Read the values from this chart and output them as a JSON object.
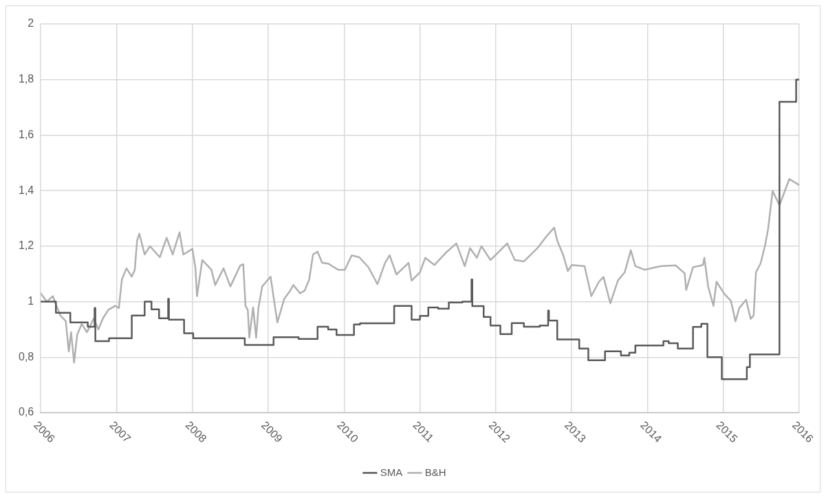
{
  "chart_data": {
    "type": "line",
    "xlim": [
      2006,
      2016
    ],
    "xticks": [
      2006,
      2007,
      2008,
      2009,
      2010,
      2011,
      2012,
      2013,
      2014,
      2015,
      2016
    ],
    "ylim": [
      0.6,
      2
    ],
    "yticks": [
      {
        "value": 0.6,
        "label": "0,6"
      },
      {
        "value": 0.8,
        "label": "0,8"
      },
      1,
      {
        "value": 1.2,
        "label": "1,2"
      },
      {
        "value": 1.4,
        "label": "1,4"
      },
      {
        "value": 1.6,
        "label": "1,6"
      },
      {
        "value": 1.8,
        "label": "1,8"
      },
      2
    ],
    "grid": true,
    "legend": "bottom",
    "series": [
      {
        "name": "SMA",
        "type": "step",
        "color": "#595959",
        "x": [
          2006,
          2006.2,
          2006.39,
          2006.62,
          2006.71,
          2006.72,
          2006.9,
          2007.2,
          2007.37,
          2007.46,
          2007.56,
          2007.68,
          2007.69,
          2007.89,
          2008.01,
          2008.69,
          2009.07,
          2009.4,
          2009.65,
          2009.79,
          2009.9,
          2010.13,
          2010.21,
          2010.66,
          2010.89,
          2011,
          2011.11,
          2011.24,
          2011.38,
          2011.56,
          2011.68,
          2011.69,
          2011.84,
          2011.93,
          2012.06,
          2012.21,
          2012.37,
          2012.58,
          2012.69,
          2012.7,
          2012.81,
          2013.1,
          2013.22,
          2013.44,
          2013.65,
          2013.76,
          2013.84,
          2014.21,
          2014.28,
          2014.4,
          2014.6,
          2014.71,
          2014.79,
          2014.98,
          2015.31,
          2015.35,
          2015.74,
          2015.96,
          2016
        ],
        "values": [
          1,
          0.96,
          0.925,
          0.91,
          0.977,
          0.858,
          0.868,
          0.95,
          1,
          0.972,
          0.94,
          1.01,
          0.935,
          0.886,
          0.868,
          0.844,
          0.872,
          0.866,
          0.91,
          0.9,
          0.88,
          0.918,
          0.922,
          0.985,
          0.935,
          0.949,
          0.979,
          0.975,
          0.997,
          1,
          1.08,
          0.984,
          0.945,
          0.914,
          0.883,
          0.923,
          0.91,
          0.914,
          0.968,
          0.932,
          0.864,
          0.831,
          0.789,
          0.821,
          0.806,
          0.816,
          0.842,
          0.858,
          0.85,
          0.831,
          0.909,
          0.92,
          0.8,
          0.721,
          0.764,
          0.81,
          1.72,
          1.8,
          1.8
        ]
      },
      {
        "name": "B&H",
        "color": "#b0b0b0",
        "x": [
          2006,
          2006.08,
          2006.16,
          2006.2,
          2006.26,
          2006.33,
          2006.37,
          2006.4,
          2006.44,
          2006.48,
          2006.54,
          2006.61,
          2006.7,
          2006.76,
          2006.82,
          2006.89,
          2006.98,
          2007.03,
          2007.07,
          2007.13,
          2007.2,
          2007.24,
          2007.27,
          2007.3,
          2007.37,
          2007.44,
          2007.57,
          2007.66,
          2007.74,
          2007.83,
          2007.88,
          2008.0,
          2008.04,
          2008.06,
          2008.13,
          2008.25,
          2008.3,
          2008.41,
          2008.5,
          2008.63,
          2008.67,
          2008.7,
          2008.73,
          2008.75,
          2008.8,
          2008.84,
          2008.87,
          2008.92,
          2009.03,
          2009.12,
          2009.21,
          2009.29,
          2009.33,
          2009.42,
          2009.48,
          2009.54,
          2009.59,
          2009.65,
          2009.71,
          2009.79,
          2009.92,
          2010.01,
          2010.1,
          2010.2,
          2010.32,
          2010.44,
          2010.54,
          2010.6,
          2010.69,
          2010.85,
          2010.89,
          2011,
          2011.07,
          2011.19,
          2011.34,
          2011.48,
          2011.59,
          2011.66,
          2011.75,
          2011.81,
          2011.93,
          2012.15,
          2012.25,
          2012.37,
          2012.55,
          2012.67,
          2012.77,
          2012.81,
          2012.89,
          2012.95,
          2013.0,
          2013.17,
          2013.26,
          2013.36,
          2013.42,
          2013.51,
          2013.61,
          2013.7,
          2013.78,
          2013.84,
          2013.96,
          2014.17,
          2014.37,
          2014.49,
          2014.51,
          2014.6,
          2014.73,
          2014.75,
          2014.8,
          2014.87,
          2014.91,
          2015.01,
          2015.1,
          2015.16,
          2015.21,
          2015.3,
          2015.36,
          2015.4,
          2015.43,
          2015.49,
          2015.55,
          2015.59,
          2015.65,
          2015.74,
          2015.87,
          2016
        ],
        "values": [
          1.03,
          1,
          1.02,
          0.99,
          0.95,
          0.93,
          0.82,
          0.89,
          0.78,
          0.88,
          0.92,
          0.89,
          0.94,
          0.9,
          0.94,
          0.97,
          0.985,
          0.977,
          1.08,
          1.12,
          1.09,
          1.115,
          1.22,
          1.245,
          1.17,
          1.2,
          1.16,
          1.23,
          1.17,
          1.25,
          1.17,
          1.19,
          1.12,
          1.02,
          1.15,
          1.115,
          1.06,
          1.12,
          1.055,
          1.13,
          1.135,
          0.985,
          0.97,
          0.87,
          0.98,
          0.87,
          0.977,
          1.055,
          1.09,
          0.925,
          1.01,
          1.04,
          1.06,
          1.03,
          1.04,
          1.08,
          1.17,
          1.18,
          1.14,
          1.137,
          1.115,
          1.115,
          1.167,
          1.16,
          1.124,
          1.063,
          1.14,
          1.167,
          1.098,
          1.14,
          1.076,
          1.106,
          1.158,
          1.132,
          1.176,
          1.21,
          1.128,
          1.193,
          1.158,
          1.2,
          1.15,
          1.21,
          1.15,
          1.145,
          1.193,
          1.236,
          1.267,
          1.22,
          1.167,
          1.11,
          1.132,
          1.128,
          1.02,
          1.072,
          1.089,
          0.994,
          1.076,
          1.106,
          1.185,
          1.128,
          1.115,
          1.128,
          1.131,
          1.102,
          1.042,
          1.124,
          1.132,
          1.158,
          1.054,
          0.985,
          1.072,
          1.029,
          1.003,
          0.929,
          0.977,
          1.007,
          0.938,
          0.951,
          1.106,
          1.137,
          1.202,
          1.261,
          1.399,
          1.347,
          1.442,
          1.42
        ]
      }
    ]
  }
}
